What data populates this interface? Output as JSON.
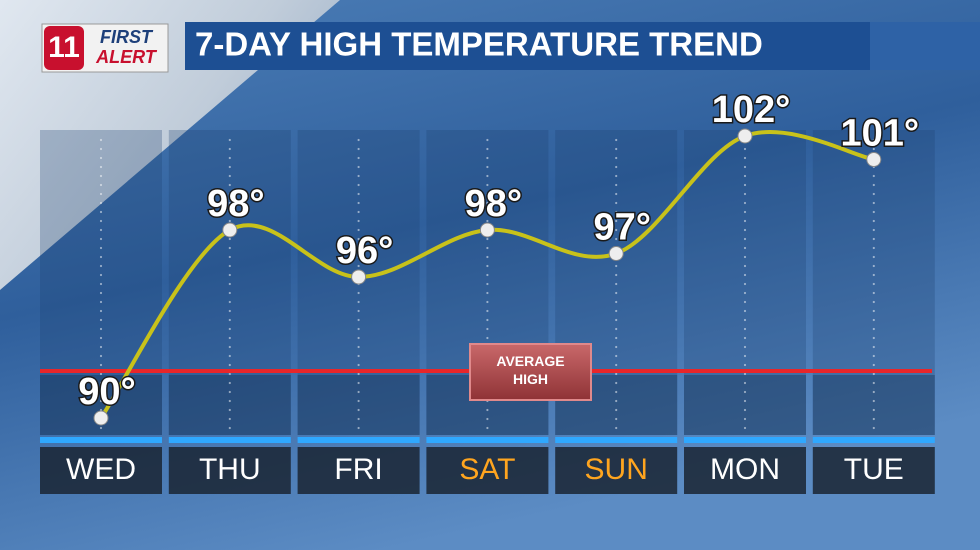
{
  "chart_data": {
    "type": "line",
    "title": "7-DAY HIGH TEMPERATURE TREND",
    "logo_channel": "11",
    "logo_text": [
      "FIRST",
      "ALERT"
    ],
    "categories": [
      "WED",
      "THU",
      "FRI",
      "SAT",
      "SUN",
      "MON",
      "TUE"
    ],
    "category_colors": [
      "#ffffff",
      "#ffffff",
      "#ffffff",
      "#ffa51f",
      "#ffa51f",
      "#ffffff",
      "#ffffff"
    ],
    "values": [
      90,
      98,
      96,
      98,
      97,
      102,
      101
    ],
    "value_labels": [
      "90°",
      "98°",
      "96°",
      "98°",
      "97°",
      "102°",
      "101°"
    ],
    "color": "#c8c21a",
    "ylim": [
      88,
      104
    ],
    "reference_line": {
      "label": "AVERAGE HIGH",
      "value": 92,
      "color": "#e8262a"
    }
  }
}
